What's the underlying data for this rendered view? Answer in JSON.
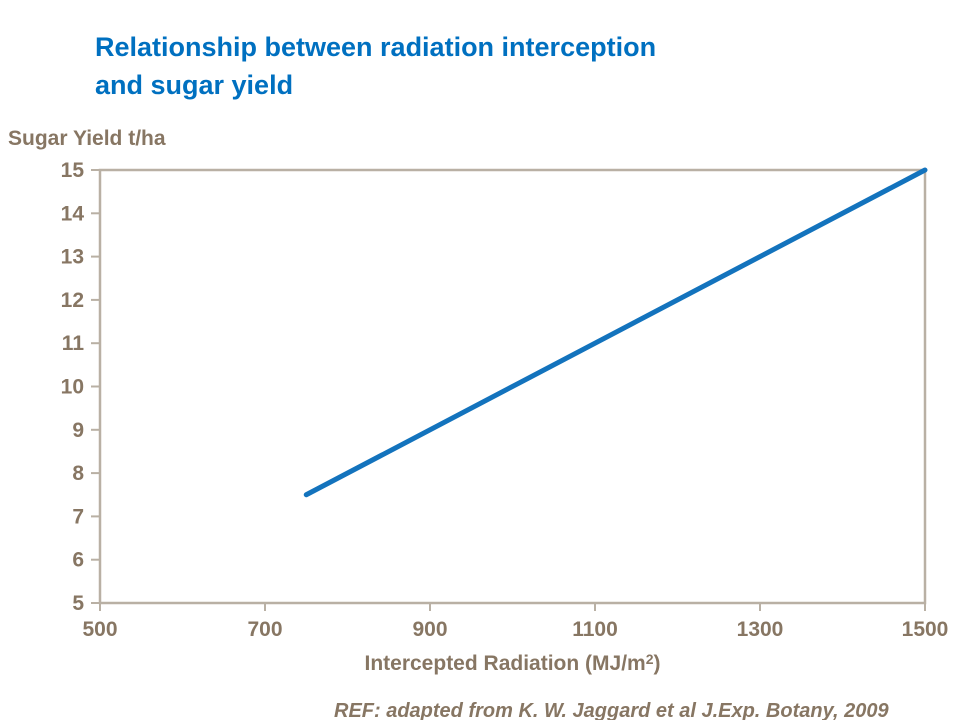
{
  "header": {
    "title_lines": [
      "Relationship between radiation interception",
      "and sugar yield"
    ],
    "title_color": "#0070c0"
  },
  "chart_data": {
    "type": "line",
    "title": "Relationship between radiation interception and sugar yield",
    "ylabel": "Sugar Yield t/ha",
    "xlabel": {
      "text": "Intercepted Radiation (MJ/m",
      "sup": "2",
      "suffix": ")"
    },
    "xlim": [
      500,
      1500
    ],
    "ylim": [
      5,
      15
    ],
    "xticks": [
      500,
      700,
      900,
      1100,
      1300,
      1500
    ],
    "yticks": [
      15,
      14,
      13,
      12,
      11,
      10,
      9,
      8,
      7,
      6,
      5
    ],
    "grid": false,
    "legend": "none",
    "plot_border": "full-box",
    "axis_color": "#b9b0a4",
    "tick_label_color": "#877663",
    "series": [
      {
        "name": "sugar-yield-line",
        "color": "#1373bd",
        "stroke_width": 5,
        "points": [
          [
            750,
            7.5
          ],
          [
            1500,
            15
          ]
        ]
      }
    ]
  },
  "footer": {
    "reference": "REF: adapted from K. W. Jaggard et al J.Exp. Botany, 2009"
  }
}
